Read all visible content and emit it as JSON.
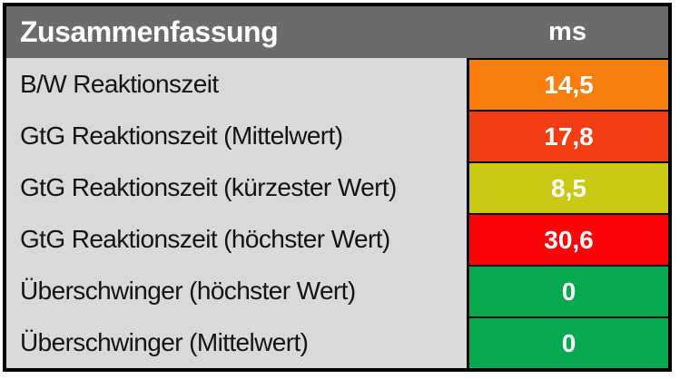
{
  "title": "Zusammenfassung",
  "unit": "ms",
  "rows": [
    {
      "label": "B/W Reaktionszeit",
      "value": "14,5",
      "color": "#f87e0e"
    },
    {
      "label": "GtG Reaktionszeit (Mittelwert)",
      "value": "17,8",
      "color": "#f23d12"
    },
    {
      "label": "GtG Reaktionszeit (kürzester Wert)",
      "value": "8,5",
      "color": "#c9c913"
    },
    {
      "label": "GtG Reaktionszeit (höchster Wert)",
      "value": "30,6",
      "color": "#fb0307"
    },
    {
      "label": "Überschwinger (höchster Wert)",
      "value": "0",
      "color": "#07a94f"
    },
    {
      "label": "Überschwinger (Mittelwert)",
      "value": "0",
      "color": "#07a94f"
    }
  ],
  "colors": {
    "header_bg": "#6b6b6b",
    "header_text": "#ffffff",
    "label_bg": "#d9d9d9",
    "label_text": "#141414",
    "value_text": "#ffffff",
    "border": "#000000"
  },
  "chart_data": {
    "type": "table",
    "title": "Zusammenfassung",
    "unit": "ms",
    "columns": [
      "Zusammenfassung",
      "ms"
    ],
    "rows": [
      [
        "B/W Reaktionszeit",
        14.5
      ],
      [
        "GtG Reaktionszeit (Mittelwert)",
        17.8
      ],
      [
        "GtG Reaktionszeit (kürzester Wert)",
        8.5
      ],
      [
        "GtG Reaktionszeit (höchster Wert)",
        30.6
      ],
      [
        "Überschwinger (höchster Wert)",
        0
      ],
      [
        "Überschwinger (Mittelwert)",
        0
      ]
    ],
    "cell_colors": [
      "#f87e0e",
      "#f23d12",
      "#c9c913",
      "#fb0307",
      "#07a94f",
      "#07a94f"
    ]
  }
}
